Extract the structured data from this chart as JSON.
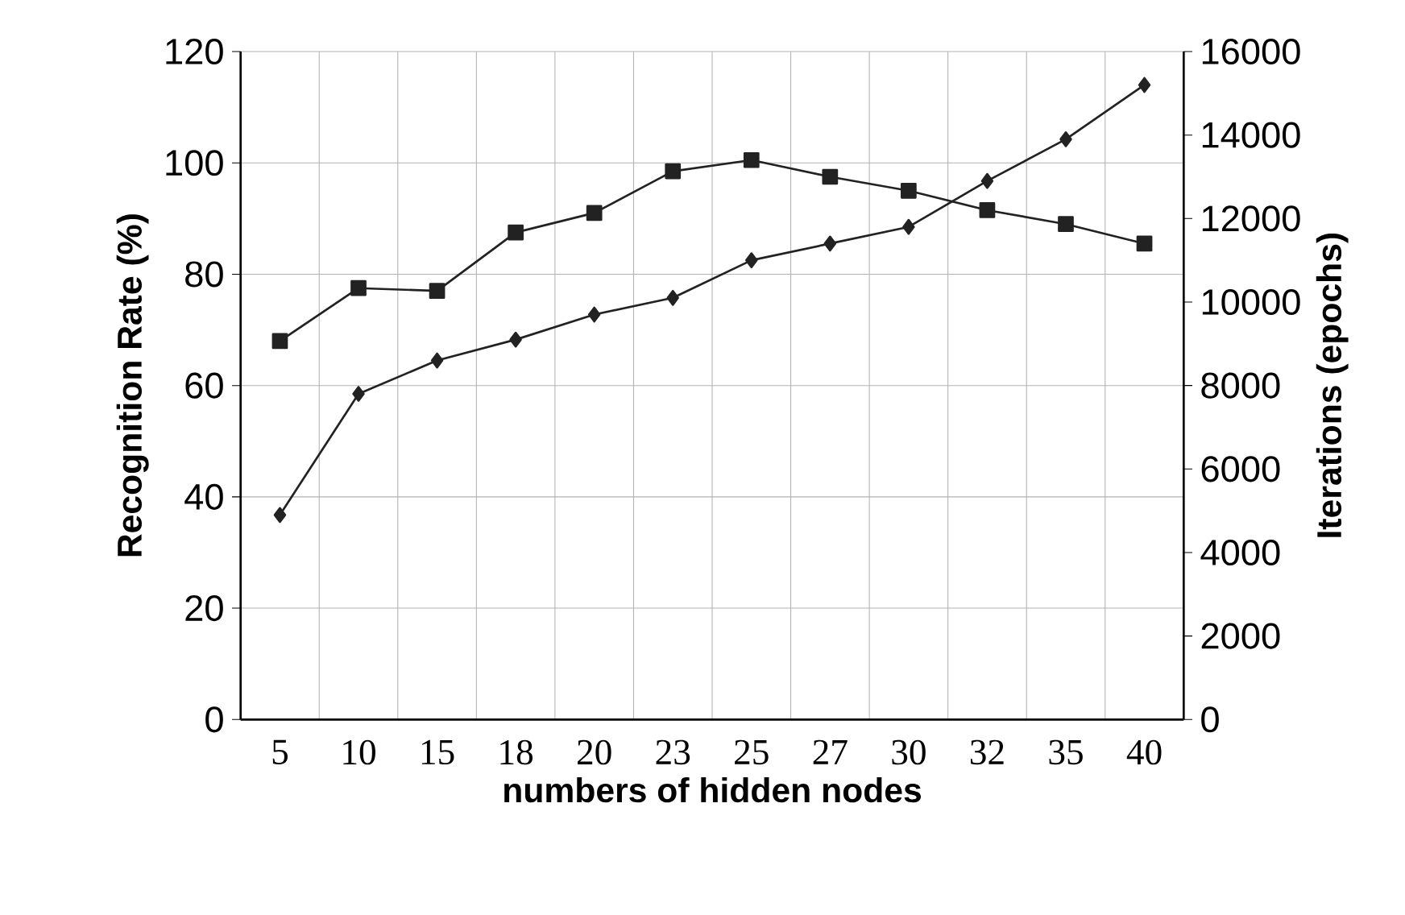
{
  "chart_data": {
    "type": "line",
    "xlabel": "numbers of hidden nodes",
    "ylabel": "Recognition Rate (%)",
    "y2label": "Iterations (epochs)",
    "categories": [
      "5",
      "10",
      "15",
      "18",
      "20",
      "23",
      "25",
      "27",
      "30",
      "32",
      "35",
      "40"
    ],
    "series": [
      {
        "color": "#222222",
        "marker": "square",
        "values": [
          68,
          77.5,
          77,
          87.5,
          91,
          98.5,
          100.5,
          97.5,
          95,
          91.5,
          89,
          85.5
        ]
      },
      {
        "color": "#222222",
        "marker": "diamond",
        "axis": "y2",
        "values": [
          4900,
          7800,
          8600,
          9100,
          9700,
          10100,
          11000,
          11400,
          11800,
          12900,
          13900,
          15200
        ]
      }
    ],
    "ylim": [
      0,
      120
    ],
    "yticks": [
      0,
      20,
      40,
      60,
      80,
      100,
      120
    ],
    "y2lim": [
      0,
      16000
    ],
    "y2ticks": [
      0,
      2000,
      4000,
      6000,
      8000,
      10000,
      12000,
      14000,
      16000
    ],
    "grid": true
  }
}
